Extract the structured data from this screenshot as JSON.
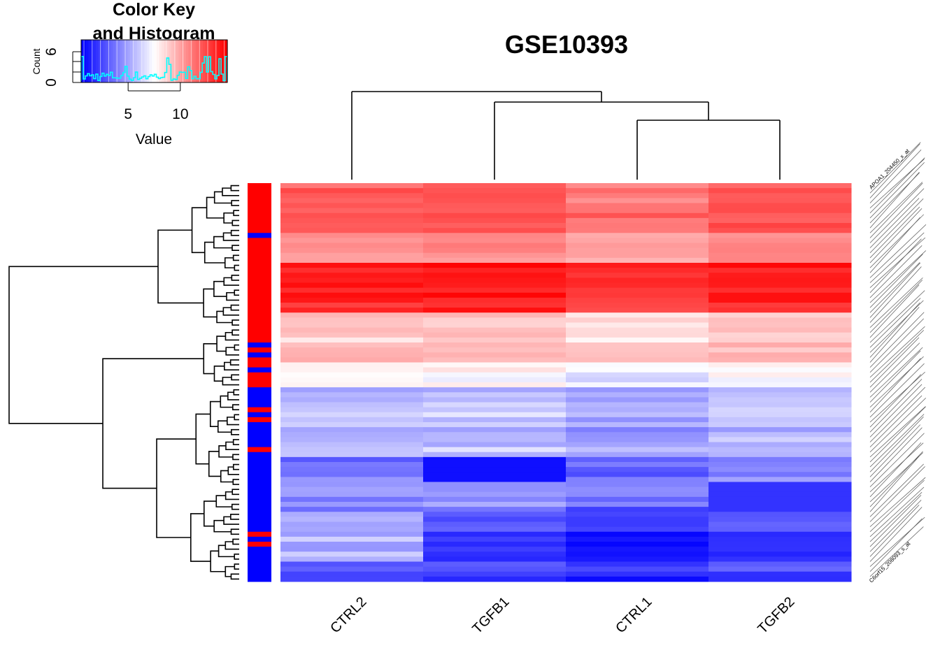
{
  "chart_data": {
    "type": "heatmap",
    "title": "GSE10393",
    "columns": [
      "CTRL2",
      "TGFB1",
      "CTRL1",
      "TGFB2"
    ],
    "row_count": 80,
    "row_labels": [
      "APOA1_204450_x_at",
      "...",
      "C6orf15_208093_s_at"
    ],
    "color_scale": {
      "low": "#0000ff",
      "mid": "#ffffff",
      "high": "#ff0000",
      "range": [
        0.5,
        14.5
      ]
    },
    "row_side_colors": {
      "colors": [
        "#ff0000",
        "#0000ff"
      ]
    },
    "color_key": {
      "title_line1": "Color Key",
      "title_line2": "and Histogram",
      "xlabel": "Value",
      "ylabel": "Count",
      "x_ticks": [
        5,
        10
      ],
      "y_ticks": [
        0,
        6
      ],
      "histogram_color": "#00ffff"
    },
    "column_dendrogram": "((CTRL2),(TGFB1,(CTRL1,TGFB2)))"
  }
}
